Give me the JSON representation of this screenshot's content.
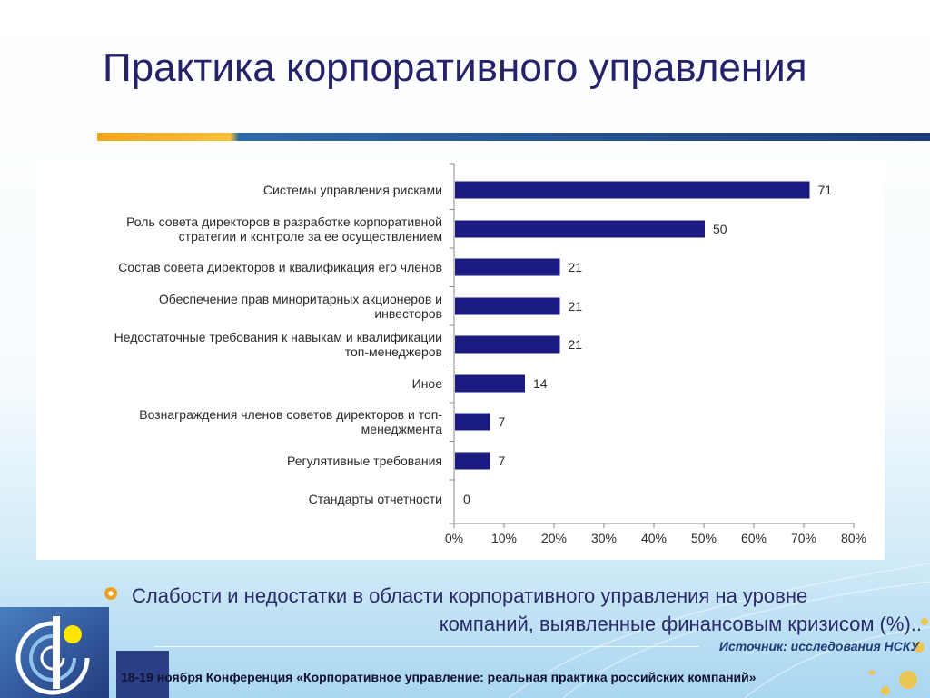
{
  "slide": {
    "title": "Практика корпоративного управления",
    "subtitle_line1": "Слабости и недостатки в области корпоративного управления на уровне",
    "subtitle_line2": "компаний, выявленные финансовым кризисом (%)..",
    "source": "Источник: исследования НСКУ",
    "footer": "18-19 ноября Конференция «Корпоративное управление: реальная практика российских компаний»"
  },
  "colors": {
    "title": "#23226b",
    "bar": "#1a1a80",
    "accent_orange": "#f3a417",
    "accent_navy": "#1e3f7a"
  },
  "chart_data": {
    "type": "bar",
    "orientation": "horizontal",
    "categories": [
      "Системы управления рисками",
      "Роль совета директоров в разработке корпоративной\nстратегии и контроле за ее осуществлением",
      "Состав совета директоров и квалификация его членов",
      "Обеспечение прав миноритарных акционеров и\nинвесторов",
      "Недостаточные требования к навыкам и квалификации\nтоп-менеджеров",
      "Иное",
      "Вознаграждения членов советов директоров и топ-\nменеджмента",
      "Регулятивные требования",
      "Стандарты отчетности"
    ],
    "values": [
      71,
      50,
      21,
      21,
      21,
      14,
      7,
      7,
      0
    ],
    "value_labels": [
      "71",
      "50",
      "21",
      "21",
      "21",
      "14",
      "7",
      "7",
      "0"
    ],
    "xlim": [
      0,
      80
    ],
    "xticks": [
      "0%",
      "10%",
      "20%",
      "30%",
      "40%",
      "50%",
      "60%",
      "70%",
      "80%"
    ],
    "grid": false,
    "legend": "none"
  }
}
